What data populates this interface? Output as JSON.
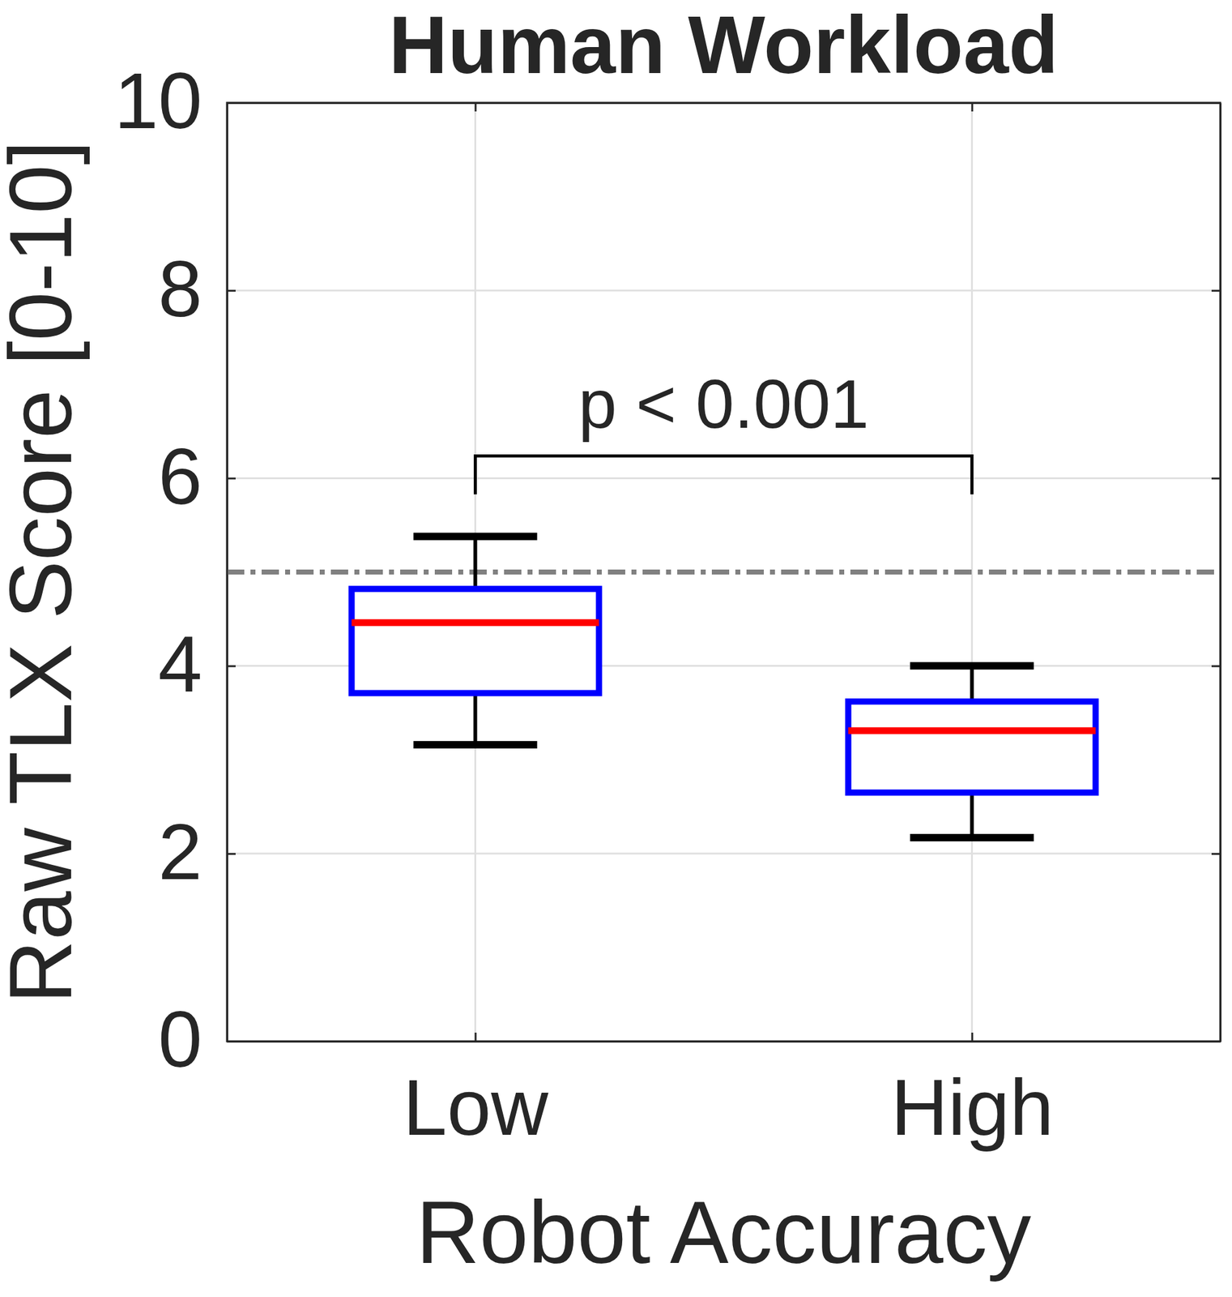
{
  "chart_data": {
    "type": "box",
    "title": "Human Workload",
    "xlabel": "Robot Accuracy",
    "ylabel": "Raw TLX Score [0-10]",
    "categories": [
      "Low",
      "High"
    ],
    "whisker_low": [
      3.16,
      2.17
    ],
    "q1": [
      3.71,
      2.65
    ],
    "median": [
      4.46,
      3.31
    ],
    "q3": [
      4.82,
      3.62
    ],
    "whisker_high": [
      5.38,
      4.0
    ],
    "reference_line": 5,
    "annotations": [
      {
        "text": "p < 0.001"
      }
    ],
    "color": "#0000ff",
    "ylim": [
      0,
      10
    ],
    "yticks": [
      0,
      2,
      4,
      6,
      8,
      10
    ],
    "grid": true
  }
}
